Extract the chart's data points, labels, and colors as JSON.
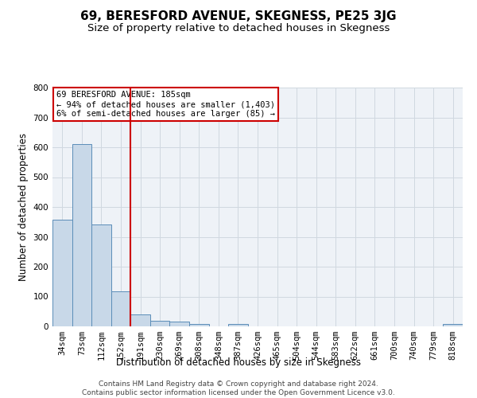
{
  "title": "69, BERESFORD AVENUE, SKEGNESS, PE25 3JG",
  "subtitle": "Size of property relative to detached houses in Skegness",
  "xlabel": "Distribution of detached houses by size in Skegness",
  "ylabel": "Number of detached properties",
  "footer_line1": "Contains HM Land Registry data © Crown copyright and database right 2024.",
  "footer_line2": "Contains public sector information licensed under the Open Government Licence v3.0.",
  "annotation_line1": "69 BERESFORD AVENUE: 185sqm",
  "annotation_line2": "← 94% of detached houses are smaller (1,403)",
  "annotation_line3": "6% of semi-detached houses are larger (85) →",
  "bar_color": "#c8d8e8",
  "bar_edge_color": "#5b8db8",
  "vline_color": "#cc0000",
  "annotation_box_edge_color": "#cc0000",
  "grid_color": "#d0d8e0",
  "background_color": "#eef2f7",
  "categories": [
    "34sqm",
    "73sqm",
    "112sqm",
    "152sqm",
    "191sqm",
    "230sqm",
    "269sqm",
    "308sqm",
    "348sqm",
    "387sqm",
    "426sqm",
    "465sqm",
    "504sqm",
    "544sqm",
    "583sqm",
    "622sqm",
    "661sqm",
    "700sqm",
    "740sqm",
    "779sqm",
    "818sqm"
  ],
  "values": [
    357,
    612,
    341,
    117,
    40,
    20,
    15,
    9,
    0,
    9,
    0,
    0,
    0,
    0,
    0,
    0,
    0,
    0,
    0,
    0,
    7
  ],
  "ylim": [
    0,
    800
  ],
  "yticks": [
    0,
    100,
    200,
    300,
    400,
    500,
    600,
    700,
    800
  ],
  "vline_x": 3.5,
  "title_fontsize": 11,
  "subtitle_fontsize": 9.5,
  "axis_label_fontsize": 8.5,
  "tick_fontsize": 7.5,
  "annotation_fontsize": 7.5,
  "footer_fontsize": 6.5
}
